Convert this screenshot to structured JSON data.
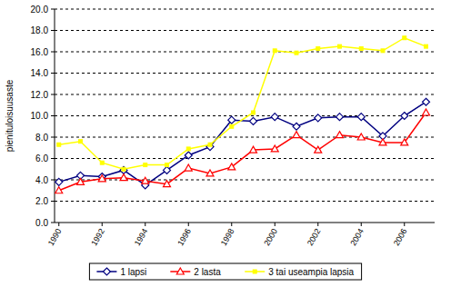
{
  "chart_data": {
    "type": "line",
    "y_label": "pienituloisuusaste",
    "x": [
      1990,
      1991,
      1992,
      1993,
      1994,
      1995,
      1996,
      1997,
      1998,
      1999,
      2000,
      2001,
      2002,
      2003,
      2004,
      2005,
      2006,
      2007
    ],
    "xlim": [
      1989.8,
      2007.4
    ],
    "xticks": [
      1990,
      1992,
      1994,
      1996,
      1998,
      2000,
      2002,
      2004,
      2006
    ],
    "ylim": [
      0,
      20
    ],
    "yticks": [
      {
        "value": 0,
        "label": "0.0"
      },
      {
        "value": 2,
        "label": "2.0"
      },
      {
        "value": 4,
        "label": "4.0"
      },
      {
        "value": 6,
        "label": "6.0"
      },
      {
        "value": 8,
        "label": "8.0"
      },
      {
        "value": 10,
        "label": "10.0"
      },
      {
        "value": 12,
        "label": "12.0"
      },
      {
        "value": 14,
        "label": "14.0"
      },
      {
        "value": 16,
        "label": "16.0"
      },
      {
        "value": 18,
        "label": "18.0"
      },
      {
        "value": 20,
        "label": "20.0"
      }
    ],
    "grid": true,
    "legend": "bottom",
    "series": [
      {
        "name": "1 lapsi",
        "color": "#000080",
        "marker": "diamond",
        "values": [
          3.8,
          4.4,
          4.3,
          4.9,
          3.5,
          4.9,
          6.3,
          7.1,
          9.6,
          9.5,
          9.9,
          9.0,
          9.8,
          9.9,
          9.9,
          8.1,
          10.0,
          11.3
        ]
      },
      {
        "name": "2 lasta",
        "color": "#ff0000",
        "marker": "triangle",
        "values": [
          3.0,
          3.8,
          4.1,
          4.2,
          3.9,
          3.6,
          5.1,
          4.6,
          5.2,
          6.8,
          6.9,
          8.2,
          6.8,
          8.2,
          8.0,
          7.5,
          7.5,
          10.3
        ]
      },
      {
        "name": "3 tai useampia lapsia",
        "color": "#ffff00",
        "marker": "square",
        "values": [
          7.3,
          7.6,
          5.6,
          5.0,
          5.4,
          5.4,
          6.9,
          7.3,
          9.0,
          10.3,
          16.1,
          15.9,
          16.3,
          16.5,
          16.3,
          16.1,
          17.3,
          16.5
        ]
      }
    ]
  }
}
